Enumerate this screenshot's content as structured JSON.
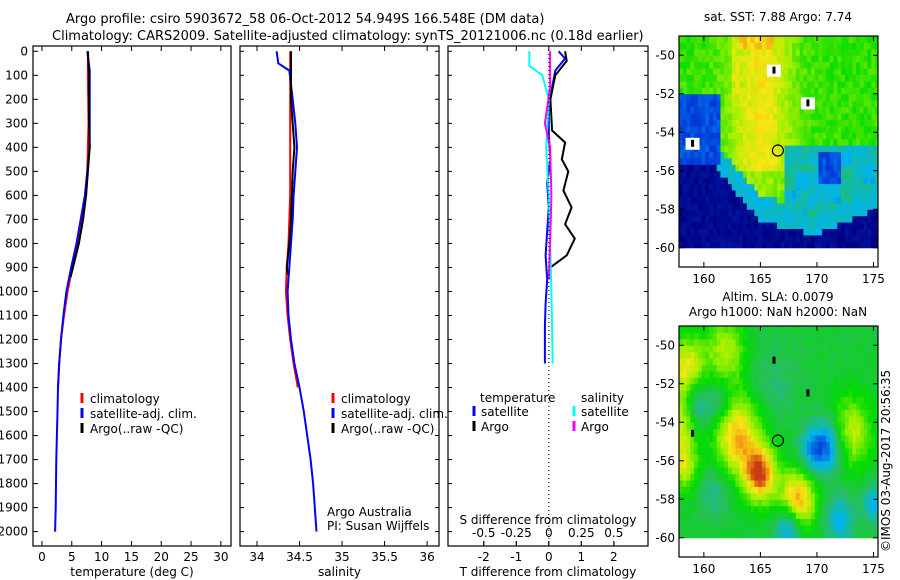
{
  "title": {
    "line1": "Argo profile: csiro 5903672_58 06-Oct-2012 54.949S 166.548E (DM data)",
    "line2": "Climatology: CARS2009. Satellite-adjusted climatology: synTS_20121006.nc (0.18d earlier)"
  },
  "copyright": "©IMOS 03-Aug-2017 20:56:35",
  "colors": {
    "climatology": "#ff0000",
    "satellite": "#0000ff",
    "argo": "#000000",
    "sal_satellite": "#00ffff",
    "sal_argo": "#ff00ff"
  },
  "chart_data": [
    {
      "type": "line",
      "name": "temperature",
      "xlabel": "temperature (deg C)",
      "xlim": [
        -1.5,
        31.7
      ],
      "ylim": [
        -22,
        2060
      ],
      "yreversed": true,
      "xticks": [
        0,
        5,
        10,
        15,
        20,
        25,
        30
      ],
      "yticks": [
        0,
        100,
        200,
        300,
        400,
        500,
        600,
        700,
        800,
        900,
        1000,
        1100,
        1200,
        1300,
        1400,
        1500,
        1600,
        1700,
        1800,
        1900,
        2000
      ],
      "legend": [
        "climatology",
        "satellite-adj. clim.",
        "Argo(..raw -QC)"
      ],
      "series": [
        {
          "name": "climatology",
          "color": "#ff0000",
          "points": [
            [
              7.7,
              0
            ],
            [
              7.7,
              100
            ],
            [
              7.8,
              300
            ],
            [
              7.6,
              500
            ],
            [
              7.3,
              600
            ],
            [
              6.7,
              700
            ],
            [
              6.0,
              800
            ],
            [
              5.1,
              900
            ],
            [
              4.3,
              1000
            ],
            [
              3.7,
              1100
            ],
            [
              3.2,
              1200
            ],
            [
              2.9,
              1300
            ],
            [
              2.7,
              1400
            ]
          ]
        },
        {
          "name": "satellite-adj. clim.",
          "color": "#0000ff",
          "points": [
            [
              7.6,
              0
            ],
            [
              8.0,
              80
            ],
            [
              8.0,
              300
            ],
            [
              8.0,
              400
            ],
            [
              7.6,
              500
            ],
            [
              7.2,
              600
            ],
            [
              6.5,
              700
            ],
            [
              5.8,
              800
            ],
            [
              4.9,
              900
            ],
            [
              4.1,
              1000
            ],
            [
              3.6,
              1100
            ],
            [
              3.2,
              1200
            ],
            [
              2.9,
              1300
            ],
            [
              2.7,
              1400
            ],
            [
              2.6,
              1500
            ],
            [
              2.5,
              1600
            ],
            [
              2.4,
              1700
            ],
            [
              2.35,
              1800
            ],
            [
              2.3,
              1900
            ],
            [
              2.2,
              2000
            ]
          ]
        },
        {
          "name": "Argo(..raw -QC)",
          "color": "#000000",
          "points": [
            [
              7.7,
              0
            ],
            [
              7.9,
              100
            ],
            [
              7.9,
              300
            ],
            [
              8.0,
              400
            ],
            [
              7.7,
              500
            ],
            [
              7.4,
              600
            ],
            [
              6.9,
              700
            ],
            [
              6.2,
              800
            ],
            [
              5.2,
              900
            ],
            [
              4.8,
              940
            ]
          ]
        }
      ]
    },
    {
      "type": "line",
      "name": "salinity",
      "xlabel": "salinity",
      "xlim": [
        33.8,
        36.14
      ],
      "ylim": [
        -22,
        2060
      ],
      "yreversed": true,
      "xticks": [
        34,
        34.5,
        35,
        35.5,
        36
      ],
      "xticklabels": [
        "34",
        "34.5",
        "35",
        "35.5",
        "36"
      ],
      "legend": [
        "climatology",
        "satellite-adj. clim.",
        "Argo(..raw -QC)"
      ],
      "annotation": [
        "Argo Australia",
        "PI: Susan Wijffels"
      ],
      "series": [
        {
          "name": "climatology",
          "color": "#ff0000",
          "points": [
            [
              34.39,
              0
            ],
            [
              34.39,
              200
            ],
            [
              34.39,
              400
            ],
            [
              34.39,
              600
            ],
            [
              34.37,
              800
            ],
            [
              34.35,
              900
            ],
            [
              34.34,
              1000
            ],
            [
              34.36,
              1100
            ],
            [
              34.39,
              1200
            ],
            [
              34.43,
              1300
            ],
            [
              34.48,
              1400
            ]
          ]
        },
        {
          "name": "satellite-adj. clim.",
          "color": "#0000ff",
          "points": [
            [
              34.23,
              0
            ],
            [
              34.25,
              50
            ],
            [
              34.38,
              80
            ],
            [
              34.42,
              200
            ],
            [
              34.45,
              300
            ],
            [
              34.47,
              400
            ],
            [
              34.45,
              500
            ],
            [
              34.43,
              600
            ],
            [
              34.42,
              700
            ],
            [
              34.4,
              800
            ],
            [
              34.38,
              900
            ],
            [
              34.36,
              1000
            ],
            [
              34.37,
              1100
            ],
            [
              34.4,
              1200
            ],
            [
              34.44,
              1300
            ],
            [
              34.5,
              1400
            ],
            [
              34.55,
              1500
            ],
            [
              34.59,
              1600
            ],
            [
              34.63,
              1700
            ],
            [
              34.66,
              1800
            ],
            [
              34.68,
              1900
            ],
            [
              34.7,
              2000
            ]
          ]
        },
        {
          "name": "Argo(..raw -QC)",
          "color": "#000000",
          "points": [
            [
              34.4,
              0
            ],
            [
              34.4,
              200
            ],
            [
              34.42,
              300
            ],
            [
              34.44,
              400
            ],
            [
              34.42,
              500
            ],
            [
              34.41,
              600
            ],
            [
              34.4,
              700
            ],
            [
              34.38,
              800
            ],
            [
              34.35,
              900
            ],
            [
              34.36,
              930
            ]
          ]
        }
      ]
    },
    {
      "type": "line",
      "name": "difference",
      "xlabel": "T difference from climatology",
      "xlabel_top": "S difference from climatology",
      "xlim": [
        -3.1,
        3.05
      ],
      "ylim": [
        -22,
        2060
      ],
      "yreversed": true,
      "xticks": [
        -2,
        -1,
        0,
        1,
        2
      ],
      "sticks": [
        -0.5,
        -0.25,
        0,
        0.25,
        0.5
      ],
      "sticklabels": [
        "-0.5",
        "-0.25",
        "0",
        "0.25",
        "0.5"
      ],
      "s_scale": 4,
      "legend": {
        "temperature_title": "temperature",
        "salinity_title": "salinity",
        "items": [
          "satellite",
          "Argo",
          "satellite",
          "Argo"
        ]
      },
      "series": [
        {
          "name": "temperature satellite",
          "color": "#0000ff",
          "points": [
            [
              0.3,
              0
            ],
            [
              0.5,
              30
            ],
            [
              0.2,
              80
            ],
            [
              0.1,
              150
            ],
            [
              0,
              250
            ],
            [
              0,
              350
            ],
            [
              0.05,
              450
            ],
            [
              -0.05,
              550
            ],
            [
              0,
              650
            ],
            [
              -0.05,
              750
            ],
            [
              -0.1,
              850
            ],
            [
              -0.05,
              950
            ],
            [
              -0.1,
              1050
            ],
            [
              -0.12,
              1150
            ],
            [
              -0.12,
              1300
            ]
          ]
        },
        {
          "name": "temperature Argo",
          "color": "#000000",
          "points": [
            [
              0.5,
              0
            ],
            [
              0.55,
              40
            ],
            [
              0.2,
              100
            ],
            [
              0.05,
              200
            ],
            [
              0.1,
              330
            ],
            [
              0.5,
              380
            ],
            [
              0.4,
              450
            ],
            [
              0.6,
              500
            ],
            [
              0.45,
              580
            ],
            [
              0.7,
              650
            ],
            [
              0.5,
              720
            ],
            [
              0.8,
              780
            ],
            [
              0.55,
              850
            ],
            [
              0.05,
              900
            ],
            [
              0.05,
              950
            ]
          ]
        },
        {
          "name": "salinity satellite",
          "color": "#00ffff",
          "points": [
            [
              -0.15,
              0
            ],
            [
              -0.15,
              60
            ],
            [
              -0.05,
              100
            ],
            [
              0,
              200
            ],
            [
              -0.02,
              400
            ],
            [
              0,
              600
            ],
            [
              0.01,
              800
            ],
            [
              0.02,
              1000
            ],
            [
              0.03,
              1300
            ]
          ]
        },
        {
          "name": "salinity Argo",
          "color": "#ff00ff",
          "points": [
            [
              0.01,
              0
            ],
            [
              0.01,
              150
            ],
            [
              -0.03,
              300
            ],
            [
              0.01,
              400
            ],
            [
              0.02,
              600
            ],
            [
              0.01,
              800
            ],
            [
              0,
              950
            ]
          ]
        }
      ]
    },
    {
      "type": "heatmap",
      "name": "sst-map",
      "title": "sat. SST: 7.88 Argo: 7.74",
      "xlim": [
        157.8,
        175.4
      ],
      "ylim": [
        -61,
        -49
      ],
      "xticks": [
        160,
        165,
        170,
        175
      ],
      "yticks": [
        -50,
        -52,
        -54,
        -56,
        -58,
        -60
      ],
      "argo_position": [
        166.548,
        -54.949
      ]
    },
    {
      "type": "heatmap",
      "name": "sla-map",
      "title": [
        "Altim. SLA: 0.0079",
        "Argo h1000: NaN h2000: NaN"
      ],
      "xlim": [
        157.8,
        175.4
      ],
      "ylim": [
        -61,
        -49
      ],
      "xticks": [
        160,
        165,
        170,
        175
      ],
      "yticks": [
        -50,
        -52,
        -54,
        -56,
        -58,
        -60
      ],
      "argo_position": [
        166.548,
        -54.949
      ]
    }
  ]
}
